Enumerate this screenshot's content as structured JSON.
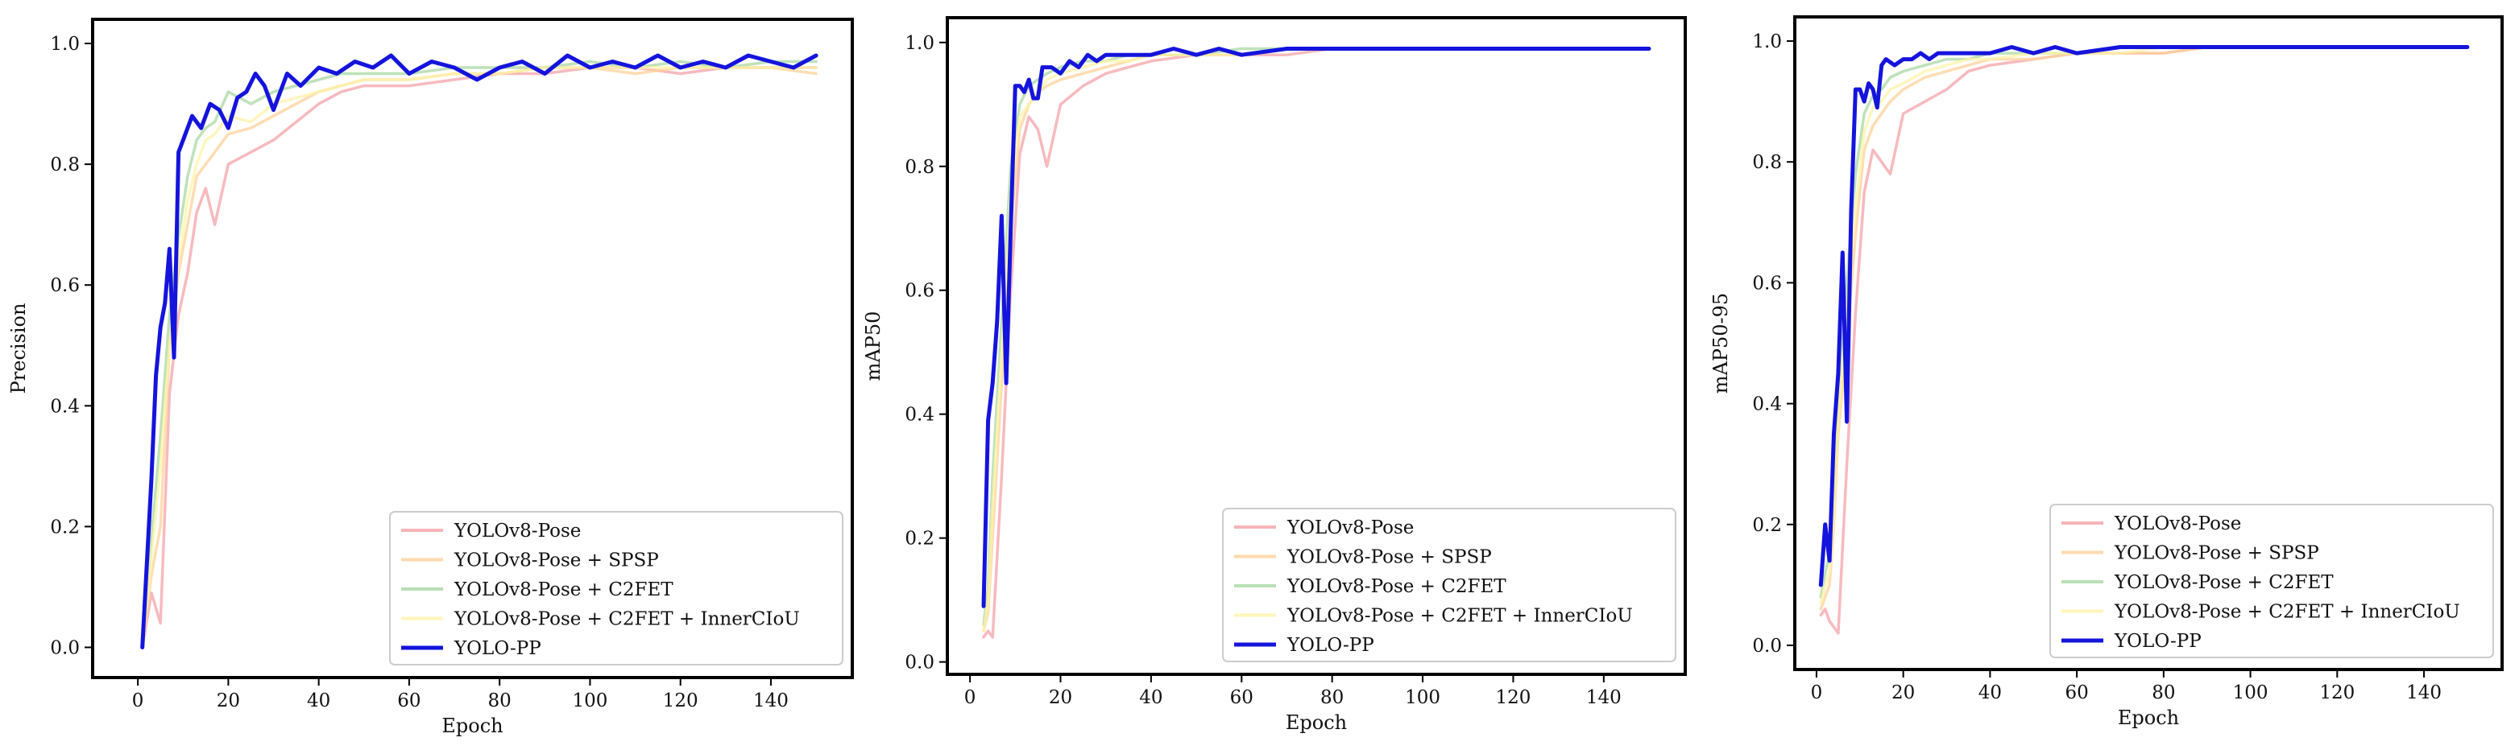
{
  "colors": {
    "YOLOv8-Pose": "#f4a3a8",
    "YOLOv8-Pose +  SPSP": "#ffd19a",
    "YOLOv8-Pose + C2FET": "#a8d8a3",
    "YOLOv8-Pose + C2FET +  InnerCIoU": "#fff3a8",
    "YOLO-PP": "#1414dc"
  },
  "chart_data": [
    {
      "type": "line",
      "xlabel": "Epoch",
      "ylabel": "Precision",
      "xlim": [
        -10,
        158
      ],
      "ylim": [
        -0.05,
        1.04
      ],
      "xticks": [
        0,
        20,
        40,
        60,
        80,
        100,
        120,
        140
      ],
      "yticks": [
        0.0,
        0.2,
        0.4,
        0.6,
        0.8,
        1.0
      ],
      "xtick_labels": [
        "0",
        "20",
        "40",
        "60",
        "80",
        "100",
        "120",
        "140"
      ],
      "ytick_labels": [
        "0.0",
        "0.2",
        "0.4",
        "0.6",
        "0.8",
        "1.0"
      ],
      "legend_position": "lower-right",
      "series": [
        {
          "name": "YOLOv8-Pose",
          "x": [
            1,
            3,
            5,
            7,
            9,
            11,
            13,
            15,
            17,
            20,
            25,
            30,
            35,
            40,
            45,
            50,
            60,
            70,
            80,
            90,
            100,
            110,
            120,
            130,
            140,
            150
          ],
          "y": [
            0.0,
            0.09,
            0.04,
            0.42,
            0.55,
            0.62,
            0.72,
            0.76,
            0.7,
            0.8,
            0.82,
            0.84,
            0.87,
            0.9,
            0.92,
            0.93,
            0.93,
            0.94,
            0.95,
            0.95,
            0.96,
            0.96,
            0.95,
            0.96,
            0.96,
            0.96
          ]
        },
        {
          "name": "YOLOv8-Pose +  SPSP",
          "x": [
            1,
            3,
            5,
            7,
            9,
            11,
            13,
            15,
            17,
            20,
            25,
            30,
            35,
            40,
            45,
            50,
            60,
            70,
            80,
            90,
            100,
            110,
            120,
            130,
            140,
            150
          ],
          "y": [
            0.0,
            0.12,
            0.2,
            0.5,
            0.62,
            0.7,
            0.78,
            0.8,
            0.82,
            0.85,
            0.86,
            0.88,
            0.9,
            0.92,
            0.93,
            0.94,
            0.94,
            0.95,
            0.95,
            0.96,
            0.96,
            0.95,
            0.96,
            0.96,
            0.96,
            0.95
          ]
        },
        {
          "name": "YOLOv8-Pose + C2FET",
          "x": [
            1,
            3,
            5,
            7,
            9,
            11,
            13,
            15,
            17,
            20,
            25,
            30,
            35,
            40,
            45,
            50,
            60,
            70,
            80,
            90,
            100,
            110,
            120,
            130,
            140,
            150
          ],
          "y": [
            0.0,
            0.18,
            0.35,
            0.55,
            0.68,
            0.78,
            0.84,
            0.86,
            0.87,
            0.92,
            0.9,
            0.92,
            0.93,
            0.94,
            0.95,
            0.95,
            0.95,
            0.96,
            0.96,
            0.96,
            0.97,
            0.96,
            0.97,
            0.96,
            0.97,
            0.97
          ]
        },
        {
          "name": "YOLOv8-Pose + C2FET +  InnerCIoU",
          "x": [
            1,
            3,
            5,
            7,
            9,
            11,
            13,
            15,
            17,
            20,
            25,
            30,
            35,
            40,
            45,
            50,
            60,
            70,
            80,
            90,
            100,
            110,
            120,
            130,
            140,
            150
          ],
          "y": [
            0.0,
            0.15,
            0.3,
            0.5,
            0.64,
            0.74,
            0.8,
            0.84,
            0.85,
            0.88,
            0.87,
            0.9,
            0.91,
            0.92,
            0.93,
            0.94,
            0.94,
            0.95,
            0.95,
            0.96,
            0.96,
            0.96,
            0.96,
            0.96,
            0.96,
            0.96
          ]
        },
        {
          "name": "YOLO-PP",
          "x": [
            1,
            3,
            4,
            5,
            6,
            7,
            8,
            9,
            10,
            12,
            14,
            16,
            18,
            20,
            22,
            24,
            26,
            28,
            30,
            33,
            36,
            40,
            44,
            48,
            52,
            56,
            60,
            65,
            70,
            75,
            80,
            85,
            90,
            95,
            100,
            105,
            110,
            115,
            120,
            125,
            130,
            135,
            140,
            145,
            150
          ],
          "y": [
            0.0,
            0.28,
            0.45,
            0.53,
            0.57,
            0.66,
            0.48,
            0.82,
            0.84,
            0.88,
            0.86,
            0.9,
            0.89,
            0.86,
            0.91,
            0.92,
            0.95,
            0.93,
            0.89,
            0.95,
            0.93,
            0.96,
            0.95,
            0.97,
            0.96,
            0.98,
            0.95,
            0.97,
            0.96,
            0.94,
            0.96,
            0.97,
            0.95,
            0.98,
            0.96,
            0.97,
            0.96,
            0.98,
            0.96,
            0.97,
            0.96,
            0.98,
            0.97,
            0.96,
            0.98
          ]
        }
      ]
    },
    {
      "type": "line",
      "xlabel": "Epoch",
      "ylabel": "mAP50",
      "xlim": [
        -5,
        158
      ],
      "ylim": [
        -0.02,
        1.04
      ],
      "xticks": [
        0,
        20,
        40,
        60,
        80,
        100,
        120,
        140
      ],
      "yticks": [
        0.0,
        0.2,
        0.4,
        0.6,
        0.8,
        1.0
      ],
      "xtick_labels": [
        "0",
        "20",
        "40",
        "60",
        "80",
        "100",
        "120",
        "140"
      ],
      "ytick_labels": [
        "0.0",
        "0.2",
        "0.4",
        "0.6",
        "0.8",
        "1.0"
      ],
      "legend_position": "lower-right",
      "series": [
        {
          "name": "YOLOv8-Pose",
          "x": [
            3,
            4,
            5,
            7,
            9,
            11,
            13,
            15,
            17,
            20,
            25,
            30,
            35,
            40,
            50,
            60,
            70,
            80,
            90,
            100,
            110,
            120,
            130,
            140,
            150
          ],
          "y": [
            0.04,
            0.05,
            0.04,
            0.3,
            0.6,
            0.82,
            0.88,
            0.86,
            0.8,
            0.9,
            0.93,
            0.95,
            0.96,
            0.97,
            0.98,
            0.98,
            0.98,
            0.99,
            0.99,
            0.99,
            0.99,
            0.99,
            0.99,
            0.99,
            0.99
          ]
        },
        {
          "name": "YOLOv8-Pose +  SPSP",
          "x": [
            3,
            4,
            5,
            7,
            9,
            11,
            13,
            15,
            17,
            20,
            25,
            30,
            35,
            40,
            50,
            60,
            70,
            80,
            90,
            100,
            110,
            120,
            130,
            140,
            150
          ],
          "y": [
            0.05,
            0.08,
            0.2,
            0.45,
            0.7,
            0.86,
            0.9,
            0.92,
            0.93,
            0.94,
            0.95,
            0.96,
            0.97,
            0.98,
            0.98,
            0.98,
            0.99,
            0.99,
            0.99,
            0.99,
            0.99,
            0.99,
            0.99,
            0.99,
            0.99
          ]
        },
        {
          "name": "YOLOv8-Pose + C2FET",
          "x": [
            3,
            4,
            5,
            7,
            9,
            11,
            13,
            15,
            17,
            20,
            25,
            30,
            35,
            40,
            50,
            60,
            70,
            80,
            90,
            100,
            110,
            120,
            130,
            140,
            150
          ],
          "y": [
            0.06,
            0.12,
            0.3,
            0.55,
            0.8,
            0.9,
            0.93,
            0.94,
            0.95,
            0.96,
            0.97,
            0.97,
            0.98,
            0.98,
            0.98,
            0.99,
            0.99,
            0.99,
            0.99,
            0.99,
            0.99,
            0.99,
            0.99,
            0.99,
            0.99
          ]
        },
        {
          "name": "YOLOv8-Pose + C2FET +  InnerCIoU",
          "x": [
            3,
            4,
            5,
            7,
            9,
            11,
            13,
            15,
            17,
            20,
            25,
            30,
            35,
            40,
            50,
            60,
            70,
            80,
            90,
            100,
            110,
            120,
            130,
            140,
            150
          ],
          "y": [
            0.05,
            0.1,
            0.25,
            0.5,
            0.75,
            0.88,
            0.9,
            0.92,
            0.94,
            0.95,
            0.96,
            0.97,
            0.97,
            0.98,
            0.98,
            0.98,
            0.99,
            0.99,
            0.99,
            0.99,
            0.99,
            0.99,
            0.99,
            0.99,
            0.99
          ]
        },
        {
          "name": "YOLO-PP",
          "x": [
            3,
            4,
            5,
            6,
            7,
            8,
            9,
            10,
            11,
            12,
            13,
            14,
            15,
            16,
            17,
            18,
            20,
            22,
            24,
            26,
            28,
            30,
            33,
            36,
            40,
            45,
            50,
            55,
            60,
            70,
            80,
            90,
            100,
            110,
            120,
            130,
            140,
            150
          ],
          "y": [
            0.09,
            0.39,
            0.45,
            0.55,
            0.72,
            0.45,
            0.7,
            0.93,
            0.93,
            0.92,
            0.94,
            0.91,
            0.91,
            0.96,
            0.96,
            0.96,
            0.95,
            0.97,
            0.96,
            0.98,
            0.97,
            0.98,
            0.98,
            0.98,
            0.98,
            0.99,
            0.98,
            0.99,
            0.98,
            0.99,
            0.99,
            0.99,
            0.99,
            0.99,
            0.99,
            0.99,
            0.99,
            0.99
          ]
        }
      ]
    },
    {
      "type": "line",
      "xlabel": "Epoch",
      "ylabel": "mAP50-95",
      "xlim": [
        -5,
        158
      ],
      "ylim": [
        -0.04,
        1.04
      ],
      "xticks": [
        0,
        20,
        40,
        60,
        80,
        100,
        120,
        140
      ],
      "yticks": [
        0.0,
        0.2,
        0.4,
        0.6,
        0.8,
        1.0
      ],
      "xtick_labels": [
        "0",
        "20",
        "40",
        "60",
        "80",
        "100",
        "120",
        "140"
      ],
      "ytick_labels": [
        "0.0",
        "0.2",
        "0.4",
        "0.6",
        "0.8",
        "1.0"
      ],
      "legend_position": "lower-right",
      "series": [
        {
          "name": "YOLOv8-Pose",
          "x": [
            1,
            2,
            3,
            4,
            5,
            7,
            9,
            11,
            13,
            15,
            17,
            20,
            25,
            30,
            35,
            40,
            50,
            60,
            70,
            80,
            90,
            100,
            110,
            120,
            130,
            140,
            150
          ],
          "y": [
            0.05,
            0.06,
            0.04,
            0.03,
            0.02,
            0.3,
            0.55,
            0.75,
            0.82,
            0.8,
            0.78,
            0.88,
            0.9,
            0.92,
            0.95,
            0.96,
            0.97,
            0.98,
            0.98,
            0.98,
            0.99,
            0.99,
            0.99,
            0.99,
            0.99,
            0.99,
            0.99
          ]
        },
        {
          "name": "YOLOv8-Pose +  SPSP",
          "x": [
            1,
            2,
            3,
            4,
            5,
            7,
            9,
            11,
            13,
            15,
            17,
            20,
            25,
            30,
            35,
            40,
            50,
            60,
            70,
            80,
            90,
            100,
            110,
            120,
            130,
            140,
            150
          ],
          "y": [
            0.06,
            0.08,
            0.1,
            0.2,
            0.35,
            0.5,
            0.68,
            0.82,
            0.86,
            0.88,
            0.9,
            0.92,
            0.94,
            0.95,
            0.96,
            0.97,
            0.97,
            0.98,
            0.98,
            0.98,
            0.99,
            0.99,
            0.99,
            0.99,
            0.99,
            0.99,
            0.99
          ]
        },
        {
          "name": "YOLOv8-Pose + C2FET",
          "x": [
            1,
            2,
            3,
            4,
            5,
            7,
            9,
            11,
            13,
            15,
            17,
            20,
            25,
            30,
            35,
            40,
            50,
            60,
            70,
            80,
            90,
            100,
            110,
            120,
            130,
            140,
            150
          ],
          "y": [
            0.08,
            0.12,
            0.15,
            0.25,
            0.4,
            0.6,
            0.78,
            0.88,
            0.91,
            0.92,
            0.94,
            0.95,
            0.96,
            0.97,
            0.97,
            0.98,
            0.98,
            0.98,
            0.99,
            0.99,
            0.99,
            0.99,
            0.99,
            0.99,
            0.99,
            0.99,
            0.99
          ]
        },
        {
          "name": "YOLOv8-Pose + C2FET +  InnerCIoU",
          "x": [
            1,
            2,
            3,
            4,
            5,
            7,
            9,
            11,
            13,
            15,
            17,
            20,
            25,
            30,
            35,
            40,
            50,
            60,
            70,
            80,
            90,
            100,
            110,
            120,
            130,
            140,
            150
          ],
          "y": [
            0.07,
            0.1,
            0.12,
            0.22,
            0.38,
            0.55,
            0.72,
            0.85,
            0.89,
            0.9,
            0.92,
            0.93,
            0.95,
            0.96,
            0.97,
            0.97,
            0.98,
            0.98,
            0.98,
            0.99,
            0.99,
            0.99,
            0.99,
            0.99,
            0.99,
            0.99,
            0.99
          ]
        },
        {
          "name": "YOLO-PP",
          "x": [
            1,
            2,
            3,
            4,
            5,
            6,
            7,
            8,
            9,
            10,
            11,
            12,
            13,
            14,
            15,
            16,
            18,
            20,
            22,
            24,
            26,
            28,
            30,
            35,
            40,
            45,
            50,
            55,
            60,
            70,
            80,
            90,
            100,
            110,
            120,
            130,
            140,
            150
          ],
          "y": [
            0.1,
            0.2,
            0.14,
            0.35,
            0.45,
            0.65,
            0.37,
            0.72,
            0.92,
            0.92,
            0.9,
            0.93,
            0.92,
            0.89,
            0.96,
            0.97,
            0.96,
            0.97,
            0.97,
            0.98,
            0.97,
            0.98,
            0.98,
            0.98,
            0.98,
            0.99,
            0.98,
            0.99,
            0.98,
            0.99,
            0.99,
            0.99,
            0.99,
            0.99,
            0.99,
            0.99,
            0.99,
            0.99
          ]
        }
      ]
    }
  ]
}
